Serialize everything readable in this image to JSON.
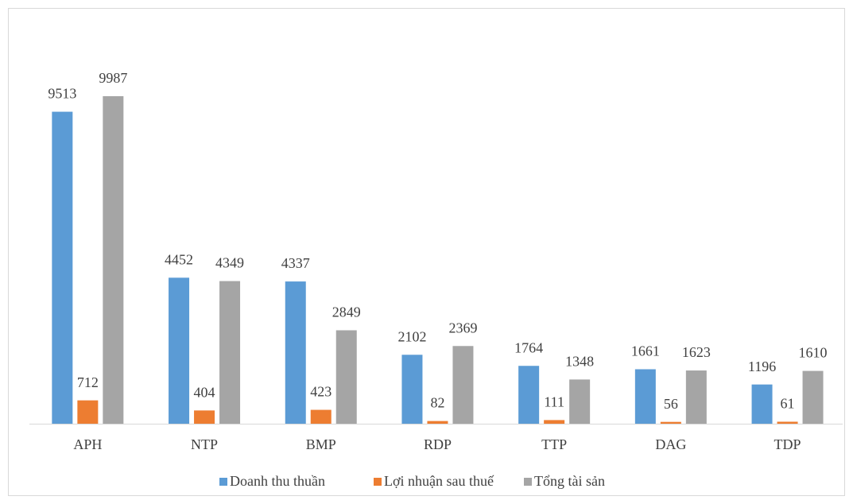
{
  "chart_data": {
    "type": "bar",
    "categories": [
      "APH",
      "NTP",
      "BMP",
      "RDP",
      "TTP",
      "DAG",
      "TDP"
    ],
    "series": [
      {
        "name": "Doanh thu thuần",
        "color": "#5b9bd5",
        "values": [
          9513,
          4452,
          4337,
          2102,
          1764,
          1661,
          1196
        ]
      },
      {
        "name": "Lợi nhuận sau thuế",
        "color": "#ed7d31",
        "values": [
          712,
          404,
          423,
          82,
          111,
          56,
          61
        ]
      },
      {
        "name": "Tổng tài sản",
        "color": "#a5a5a5",
        "values": [
          9987,
          4349,
          2849,
          2369,
          1348,
          1623,
          1610
        ]
      }
    ],
    "legend": "bottom"
  }
}
